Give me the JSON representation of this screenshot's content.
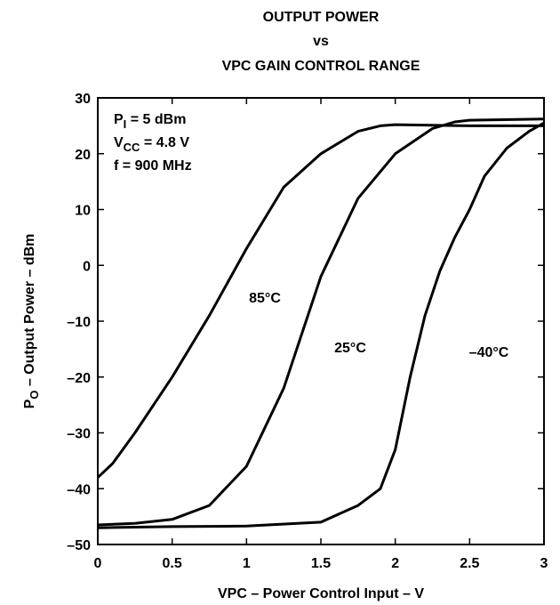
{
  "chart_data": {
    "type": "line",
    "title_lines": [
      "OUTPUT POWER",
      "vs",
      "VPC GAIN CONTROL RANGE"
    ],
    "xlabel": "VPC – Power Control Input – V",
    "ylabel": {
      "text": "P",
      "sub": "O",
      "rest": " – Output Power – dBm"
    },
    "annotations": [
      {
        "text": "P",
        "sub": "I",
        "rest": " = 5 dBm"
      },
      {
        "text": "V",
        "sub": "CC",
        "rest": " = 4.8 V"
      },
      {
        "text": "f = 900 MHz"
      }
    ],
    "xlim": [
      0,
      3
    ],
    "xticks": [
      0,
      0.5,
      1,
      1.5,
      2,
      2.5,
      3
    ],
    "ylim": [
      -50,
      30
    ],
    "yticks": [
      30,
      20,
      10,
      0,
      {
        "value": -10,
        "label": "–10"
      },
      {
        "value": -20,
        "label": "–20"
      },
      {
        "value": -30,
        "label": "–30"
      },
      {
        "value": -40,
        "label": "–40"
      },
      {
        "value": -50,
        "label": "–50"
      }
    ],
    "grid": false,
    "series": [
      {
        "name": "85°C",
        "color": "#000000",
        "x": [
          0,
          0.1,
          0.25,
          0.5,
          0.75,
          1,
          1.25,
          1.5,
          1.75,
          1.9,
          2,
          2.5,
          3
        ],
        "values": [
          -38,
          -35.5,
          -30,
          -20,
          -9,
          3,
          14,
          20,
          24,
          25,
          25.2,
          25,
          25
        ]
      },
      {
        "name": "25°C",
        "color": "#000000",
        "x": [
          0,
          0.25,
          0.5,
          0.75,
          1,
          1.25,
          1.5,
          1.75,
          2,
          2.25,
          2.4,
          2.5,
          3
        ],
        "values": [
          -46.5,
          -46.2,
          -45.5,
          -43,
          -36,
          -22,
          -2,
          12,
          20,
          24.5,
          25.7,
          26,
          26.2
        ]
      },
      {
        "name": "–40°C",
        "color": "#000000",
        "x": [
          0,
          0.5,
          1,
          1.5,
          1.75,
          1.9,
          2,
          2.1,
          2.2,
          2.3,
          2.4,
          2.5,
          2.6,
          2.75,
          2.9,
          3
        ],
        "values": [
          -47,
          -46.8,
          -46.7,
          -46,
          -43,
          -40,
          -33,
          -20,
          -9,
          -1,
          5,
          10,
          16,
          21,
          24,
          25.5
        ]
      }
    ]
  }
}
